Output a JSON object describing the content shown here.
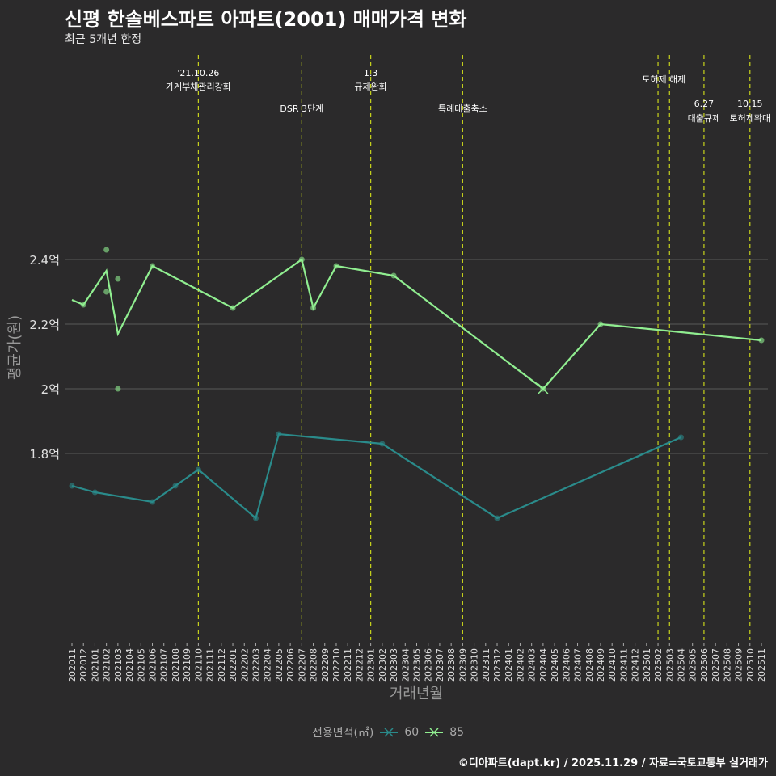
{
  "title": "신평 한솔베스파트 아파트(2001) 매매가격 변화",
  "subtitle": "최근 5개년 한정",
  "caption": "©디아파트(dapt.kr) / 2025.11.29 / 자료=국토교통부 실거래가",
  "chart_data": {
    "type": "line",
    "title": "신평 한솔베스파트 아파트(2001) 매매가격 변화",
    "xlabel": "거래년월",
    "ylabel": "평균가(원)",
    "ylim": [
      1.58,
      2.505
    ],
    "yticks": [
      1.8,
      2.0,
      2.2,
      2.4
    ],
    "ytick_labels": [
      "1.8억",
      "2억",
      "2.2억",
      "2.4억"
    ],
    "grid": true,
    "legend_title": "전용면적(㎡)",
    "legend_position": "bottom",
    "categories": [
      "202011",
      "202012",
      "202101",
      "202102",
      "202103",
      "202104",
      "202105",
      "202106",
      "202107",
      "202108",
      "202109",
      "202110",
      "202111",
      "202112",
      "202201",
      "202202",
      "202203",
      "202204",
      "202205",
      "202206",
      "202207",
      "202208",
      "202209",
      "202210",
      "202211",
      "202212",
      "202301",
      "202302",
      "202303",
      "202304",
      "202305",
      "202306",
      "202307",
      "202308",
      "202309",
      "202310",
      "202311",
      "202312",
      "202401",
      "202402",
      "202403",
      "202404",
      "202405",
      "202406",
      "202407",
      "202408",
      "202409",
      "202410",
      "202411",
      "202412",
      "202501",
      "202502",
      "202503",
      "202504",
      "202505",
      "202506",
      "202507",
      "202508",
      "202509",
      "202510",
      "202511"
    ],
    "series": [
      {
        "name": "60",
        "color": "#2a8b8b",
        "x": [
          "202011",
          "202101",
          "202106",
          "202108",
          "202110",
          "202203",
          "202205",
          "202302",
          "202312",
          "202504"
        ],
        "y": [
          1.7,
          1.68,
          1.65,
          1.7,
          1.75,
          1.6,
          1.86,
          1.83,
          1.6,
          1.85
        ],
        "points": [
          [
            "202011",
            1.7
          ],
          [
            "202101",
            1.68
          ],
          [
            "202106",
            1.65
          ],
          [
            "202108",
            1.7
          ],
          [
            "202110",
            1.75
          ],
          [
            "202203",
            1.6
          ],
          [
            "202205",
            1.86
          ],
          [
            "202302",
            1.83
          ],
          [
            "202312",
            1.6
          ],
          [
            "202504",
            1.85
          ]
        ]
      },
      {
        "name": "85",
        "color": "#90ee90",
        "x": [
          "202011",
          "202012",
          "202102",
          "202103",
          "202106",
          "202201",
          "202207",
          "202208",
          "202210",
          "202303",
          "202404",
          "202409",
          "202511"
        ],
        "y": [
          2.275,
          2.26,
          2.365,
          2.17,
          2.38,
          2.25,
          2.4,
          2.25,
          2.38,
          2.35,
          2.0,
          2.2,
          2.15
        ],
        "points": [
          [
            "202012",
            2.26
          ],
          [
            "202102",
            2.43
          ],
          [
            "202102",
            2.3
          ],
          [
            "202103",
            2.34
          ],
          [
            "202103",
            2.0
          ],
          [
            "202106",
            2.38
          ],
          [
            "202201",
            2.25
          ],
          [
            "202207",
            2.4
          ],
          [
            "202208",
            2.25
          ],
          [
            "202210",
            2.38
          ],
          [
            "202303",
            2.35
          ],
          [
            "202404",
            2.0
          ],
          [
            "202409",
            2.2
          ],
          [
            "202511",
            2.15
          ]
        ]
      }
    ],
    "events": [
      {
        "month": "202110",
        "line1": "'21.10.26",
        "line2": "가계부채관리강화",
        "row": 0
      },
      {
        "month": "202207",
        "line1": "",
        "line2": "DSR 3단계",
        "row": 1
      },
      {
        "month": "202301",
        "line1": "1.3",
        "line2": "규제완화",
        "row": 0
      },
      {
        "month": "202309",
        "line1": "",
        "line2": "특례대출축소",
        "row": 1
      },
      {
        "month": "202502",
        "line1": "",
        "line2": "",
        "row": 0
      },
      {
        "month": "202503",
        "line1": "",
        "line2": "토허제 해제",
        "row": 2
      },
      {
        "month": "202506",
        "line1": "6.27",
        "line2": "대출규제",
        "row": 3
      },
      {
        "month": "202510",
        "line1": "10.15",
        "line2": "토허제확대",
        "row": 3
      }
    ]
  }
}
